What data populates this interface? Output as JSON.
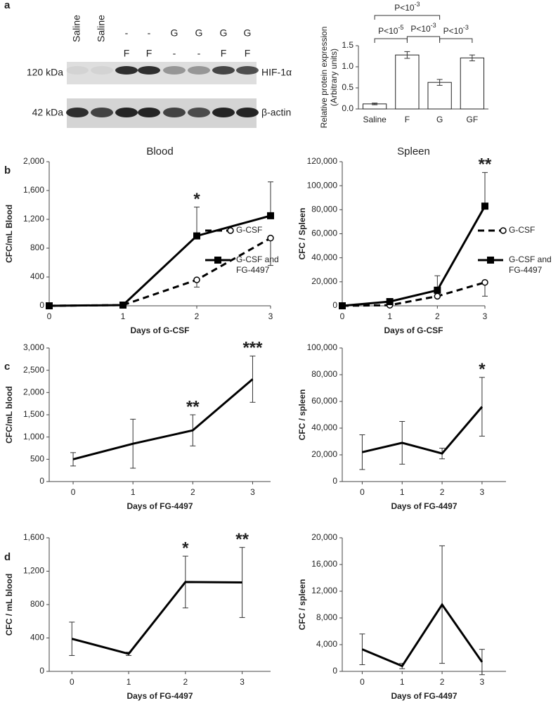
{
  "panel_labels": [
    "a",
    "b",
    "c",
    "d"
  ],
  "blot": {
    "lane_labels_top": [
      "Saline",
      "Saline",
      "-",
      "-",
      "G",
      "G",
      "G",
      "G"
    ],
    "lane_labels_bottom": [
      "F",
      "F",
      "-",
      "-",
      "F",
      "F"
    ],
    "rows": [
      {
        "size": "120 kDa",
        "protein": "HIF-1α"
      },
      {
        "size": "42 kDa",
        "protein": "β-actin"
      }
    ]
  },
  "chart_data": [
    {
      "type": "bar",
      "categories": [
        "Saline",
        "F",
        "G",
        "GF"
      ],
      "values": [
        0.12,
        1.28,
        0.63,
        1.21
      ],
      "errors": [
        0.02,
        0.08,
        0.07,
        0.07
      ],
      "color": "#ffffff",
      "ylabel": [
        "Relative protein expression",
        "(Arbitrary units)"
      ],
      "ylim": [
        0,
        1.5
      ],
      "yticks": [
        {
          "value": 0,
          "label": "0.0"
        },
        {
          "value": 0.5,
          "label": "0.5"
        },
        {
          "value": 1,
          "label": "1.0"
        },
        {
          "value": 1.5,
          "label": "1.5"
        }
      ],
      "annotations": [
        {
          "text": "P<10",
          "exponent": "-3"
        },
        {
          "text": "P<10",
          "exponent": "-5"
        },
        {
          "text": "P<10",
          "exponent": "-3"
        },
        {
          "text": "P<10",
          "exponent": "-3"
        }
      ]
    },
    {
      "type": "line",
      "title": "Blood",
      "xlabel": "Days of G-CSF",
      "ylabel": "CFC/mL Blood",
      "x": [
        0,
        1,
        2,
        3
      ],
      "xlim": [
        0,
        3
      ],
      "xticks": [
        0,
        1,
        2,
        3
      ],
      "ylim": [
        0,
        2000
      ],
      "yticks": [
        0,
        400,
        800,
        {
          "value": 1200,
          "label": "1,200"
        },
        {
          "value": 1600,
          "label": "1,600"
        },
        {
          "value": 2000,
          "label": "2,000"
        }
      ],
      "legend": "right",
      "series": [
        {
          "name": "G-CSF",
          "color": "#000000",
          "dash": true,
          "marker": "circle",
          "error_direction": "down",
          "values": [
            0,
            10,
            360,
            940
          ],
          "errors": [
            0,
            0,
            100,
            380
          ]
        },
        {
          "name": "G-CSF and FG-4497",
          "color": "#000000",
          "marker": "square",
          "error_direction": "up",
          "values": [
            0,
            10,
            970,
            1250
          ],
          "errors": [
            0,
            0,
            400,
            470
          ]
        }
      ],
      "stars": [
        {
          "x": 2,
          "text": "*"
        }
      ]
    },
    {
      "type": "line",
      "title": "Spleen",
      "xlabel": "Days of G-CSF",
      "ylabel": "CFC / Spleen",
      "x": [
        0,
        1,
        2,
        3
      ],
      "xlim": [
        0,
        3
      ],
      "xticks": [
        0,
        1,
        2,
        3
      ],
      "ylim": [
        0,
        120000
      ],
      "yticks": [
        0,
        {
          "value": 20000,
          "label": "20,000"
        },
        {
          "value": 40000,
          "label": "40,000"
        },
        {
          "value": 60000,
          "label": "60,000"
        },
        {
          "value": 80000,
          "label": "80,000"
        },
        {
          "value": 100000,
          "label": "100,000"
        },
        {
          "value": 120000,
          "label": "120,000"
        }
      ],
      "legend": "right",
      "series": [
        {
          "name": "G-CSF",
          "color": "#000000",
          "dash": true,
          "marker": "circle",
          "error_direction": "down",
          "values": [
            0,
            500,
            8000,
            19500
          ],
          "errors": [
            0,
            0,
            0,
            11500
          ]
        },
        {
          "name": "G-CSF and FG-4497",
          "color": "#000000",
          "marker": "square",
          "error_direction": "up",
          "values": [
            0,
            3500,
            13000,
            83000
          ],
          "errors": [
            0,
            0,
            12000,
            28000
          ]
        }
      ],
      "stars": [
        {
          "x": 3,
          "text": "**"
        }
      ]
    },
    {
      "type": "line",
      "xlabel": "Days of FG-4497",
      "ylabel": "CFC/mL blood",
      "x": [
        0,
        1,
        2,
        3
      ],
      "xlim": [
        -0.4,
        3.3
      ],
      "xticks": [
        0,
        1,
        2,
        3
      ],
      "ylim": [
        0,
        3000
      ],
      "yticks": [
        0,
        500,
        {
          "value": 1000,
          "label": "1,000"
        },
        {
          "value": 1500,
          "label": "1,500"
        },
        {
          "value": 2000,
          "label": "2,000"
        },
        {
          "value": 2500,
          "label": "2,500"
        },
        {
          "value": 3000,
          "label": "3,000"
        }
      ],
      "series": [
        {
          "name": "FG-4497",
          "color": "#000000",
          "values": [
            500,
            850,
            1150,
            2300
          ],
          "errors": [
            150,
            550,
            350,
            520
          ]
        }
      ],
      "stars": [
        {
          "x": 2,
          "text": "**"
        },
        {
          "x": 3,
          "text": "***"
        }
      ]
    },
    {
      "type": "line",
      "xlabel": "Days of FG-4497",
      "ylabel": "CFC / spleen",
      "x": [
        0,
        1,
        2,
        3
      ],
      "xlim": [
        -0.5,
        3.6
      ],
      "xticks": [
        0,
        1,
        2,
        3
      ],
      "ylim": [
        0,
        100000
      ],
      "yticks": [
        0,
        {
          "value": 20000,
          "label": "20,000"
        },
        {
          "value": 40000,
          "label": "40,000"
        },
        {
          "value": 60000,
          "label": "60,000"
        },
        {
          "value": 80000,
          "label": "80,000"
        },
        {
          "value": 100000,
          "label": "100,000"
        }
      ],
      "series": [
        {
          "name": "FG-4497",
          "color": "#000000",
          "values": [
            22000,
            29000,
            21000,
            56000
          ],
          "errors": [
            13000,
            16000,
            4000,
            22000
          ]
        }
      ],
      "stars": [
        {
          "x": 3,
          "text": "*"
        }
      ]
    },
    {
      "type": "line",
      "xlabel": "Days of FG-4497",
      "ylabel": "CFC / mL blood",
      "x": [
        0,
        1,
        2,
        3
      ],
      "xlim": [
        -0.4,
        3.5
      ],
      "xticks": [
        0,
        1,
        2,
        3
      ],
      "ylim": [
        0,
        1600
      ],
      "yticks": [
        0,
        400,
        800,
        {
          "value": 1200,
          "label": "1,200"
        },
        {
          "value": 1600,
          "label": "1,600"
        }
      ],
      "series": [
        {
          "name": "FG-4497",
          "color": "#000000",
          "values": [
            390,
            210,
            1070,
            1065
          ],
          "errors": [
            200,
            20,
            310,
            420
          ]
        }
      ],
      "stars": [
        {
          "x": 2,
          "text": "*"
        },
        {
          "x": 3,
          "text": "**"
        }
      ]
    },
    {
      "type": "line",
      "xlabel": "Days of FG-4497",
      "ylabel": "CFC /  spleen",
      "x": [
        0,
        1,
        2,
        3
      ],
      "xlim": [
        -0.5,
        3.6
      ],
      "xticks": [
        0,
        1,
        2,
        3
      ],
      "ylim": [
        0,
        20000
      ],
      "yticks": [
        0,
        {
          "value": 4000,
          "label": "4,000"
        },
        {
          "value": 8000,
          "label": "8,000"
        },
        {
          "value": 12000,
          "label": "12,000"
        },
        {
          "value": 16000,
          "label": "16,000"
        },
        {
          "value": 20000,
          "label": "20,000"
        }
      ],
      "series": [
        {
          "name": "FG-4497",
          "color": "#000000",
          "values": [
            3300,
            800,
            10000,
            1400
          ],
          "errors": [
            2300,
            400,
            8800,
            1900
          ]
        }
      ]
    }
  ]
}
